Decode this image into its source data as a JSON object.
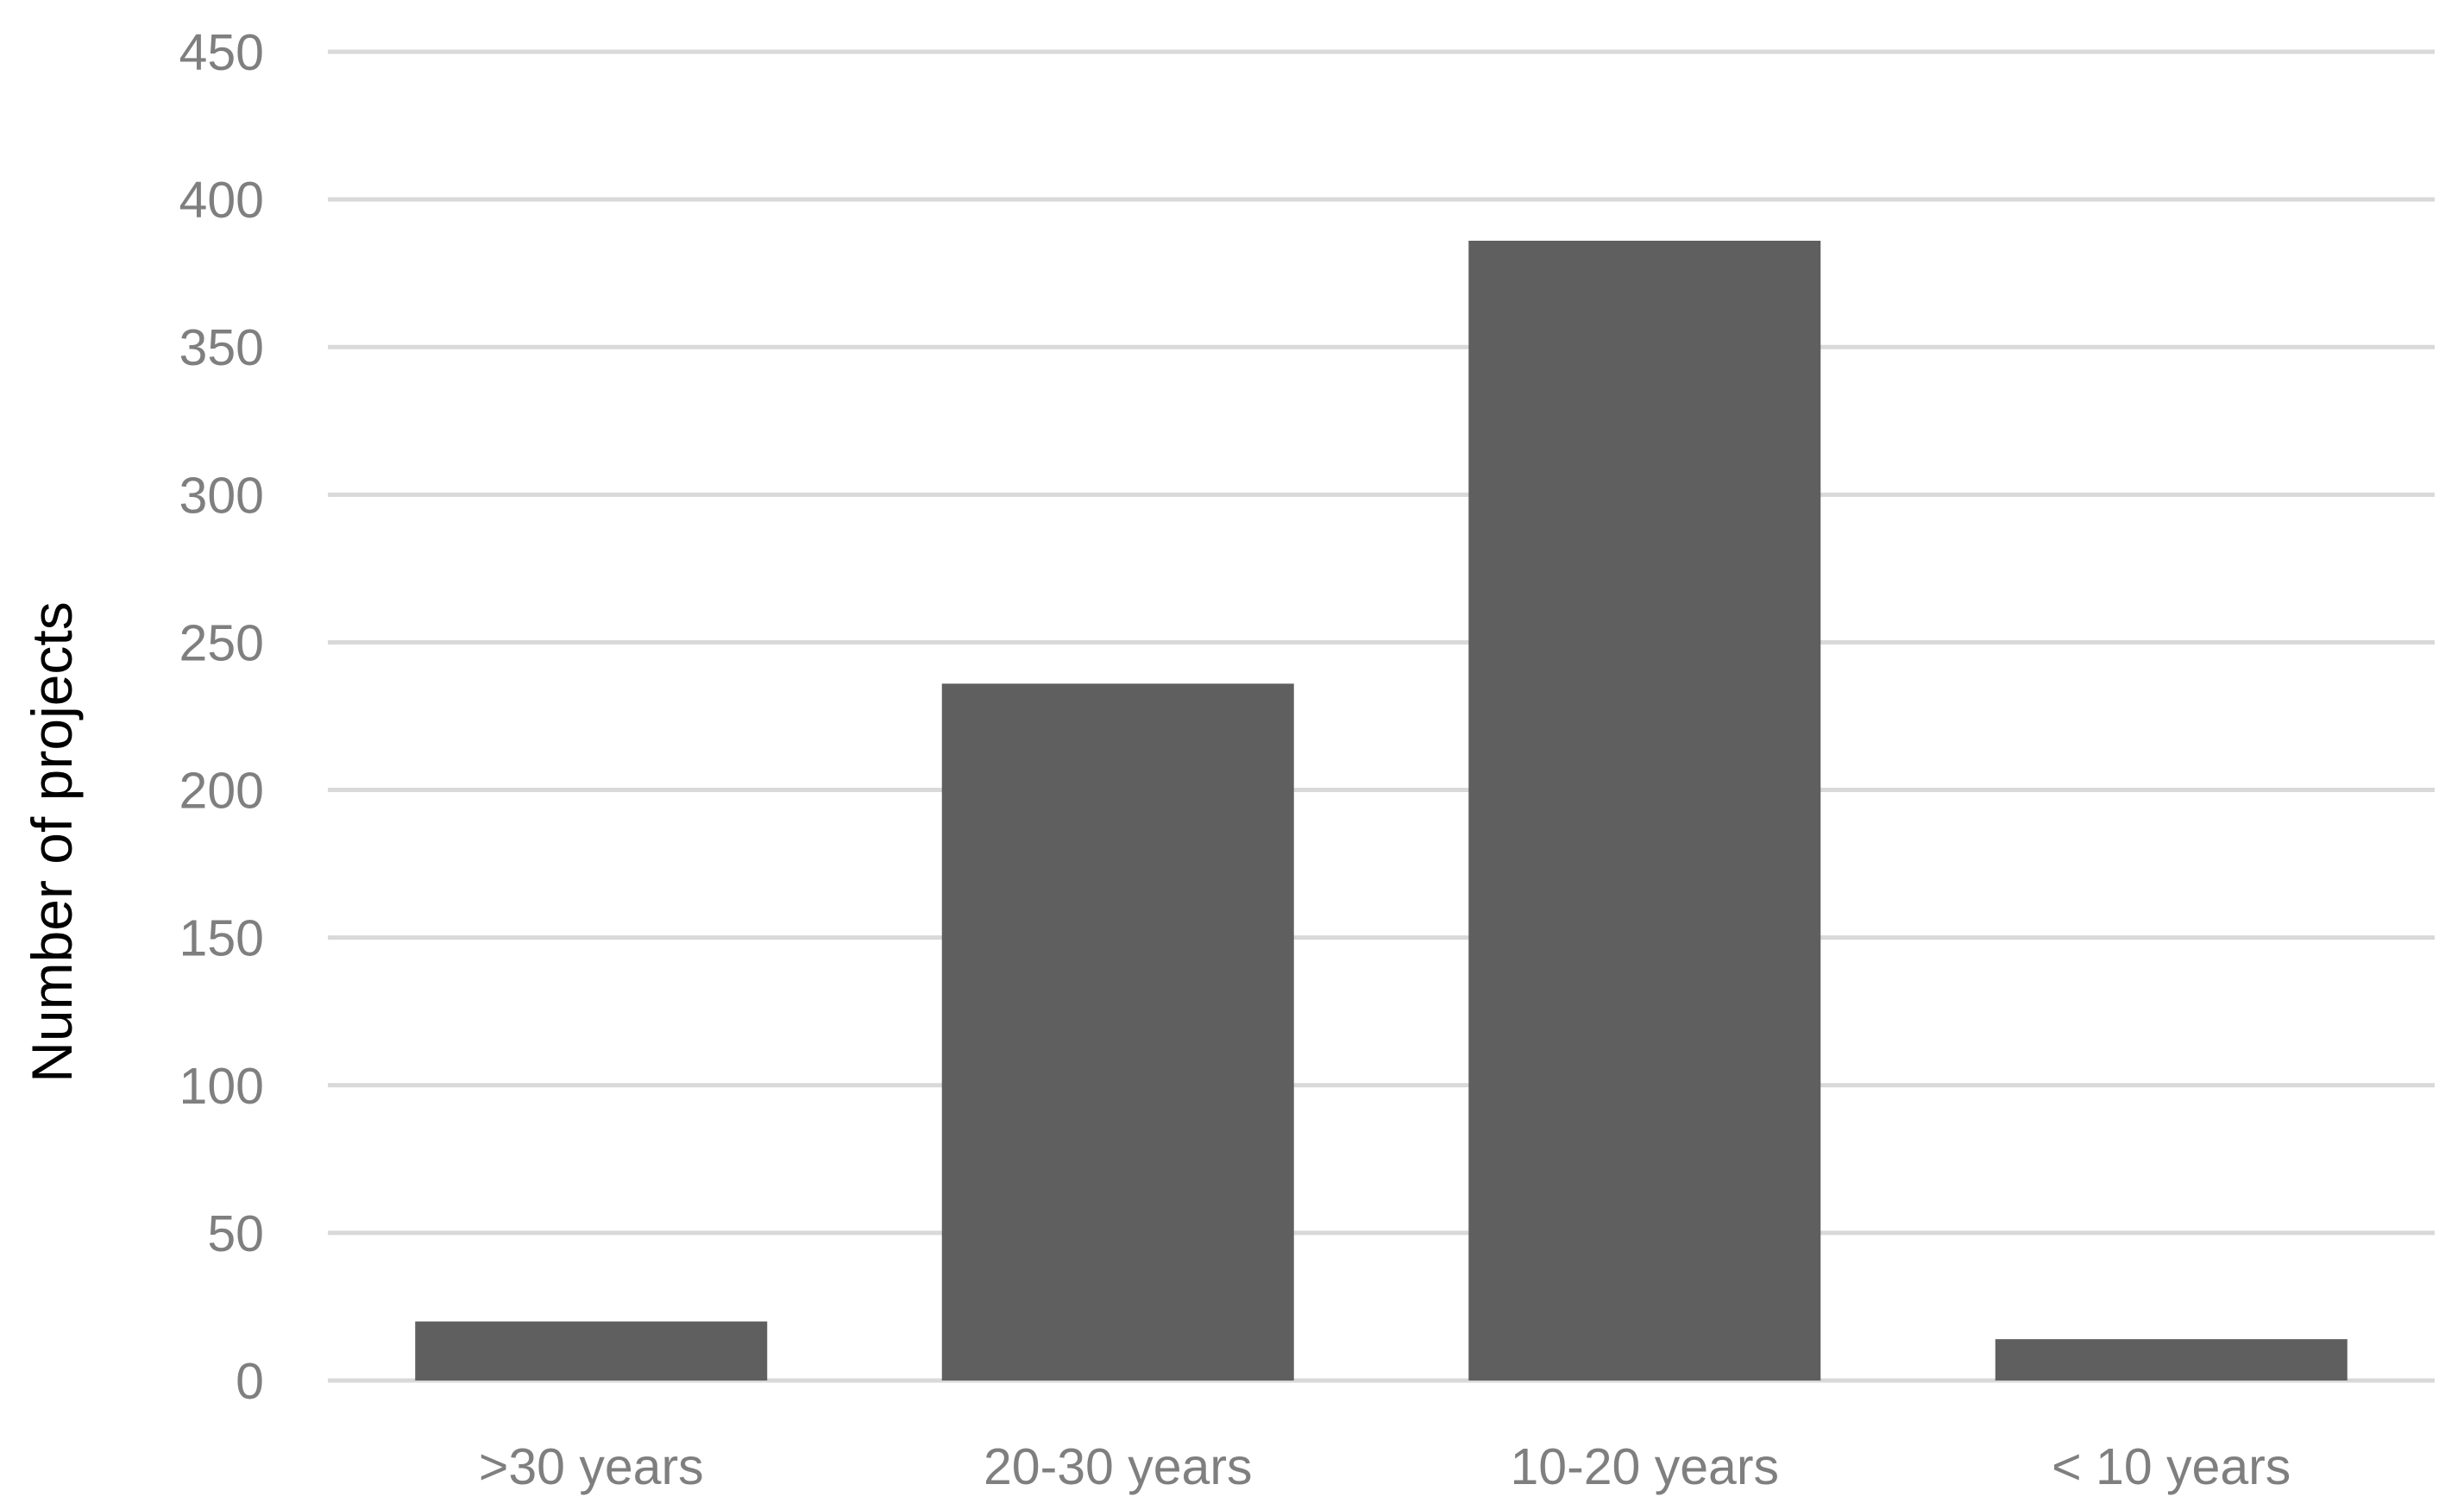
{
  "chart_data": {
    "type": "bar",
    "title": "",
    "xlabel": "",
    "ylabel": "Number of projects",
    "categories": [
      ">30 years",
      "20-30 years",
      "10-20 years",
      "< 10 years"
    ],
    "values": [
      20,
      236,
      386,
      14
    ],
    "ylim": [
      0,
      450
    ],
    "yticks": [
      0,
      50,
      100,
      150,
      200,
      250,
      300,
      350,
      400,
      450
    ],
    "grid": true,
    "legend": "none",
    "colors": {
      "bar": "#5f5f5f",
      "gridline": "#d9d9d9",
      "tick_label": "#7f7f7f",
      "axis_title": "#000000"
    }
  }
}
